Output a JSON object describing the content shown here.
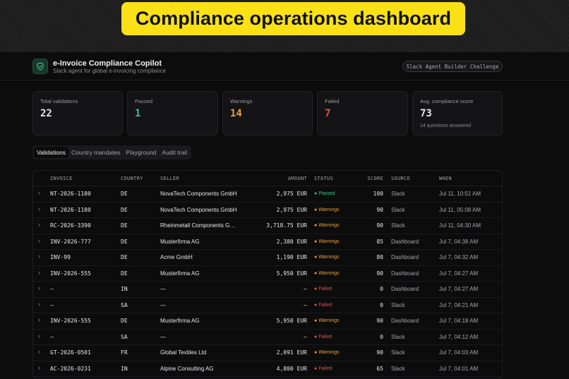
{
  "banner": {
    "title": "Compliance operations dashboard"
  },
  "header": {
    "app_title": "e-Invoice Compliance Copilot",
    "app_subtitle": "Slack agent for global e-invoicing compliance",
    "challenge_badge": "Slack Agent Builder Challenge",
    "logo_icon": "shield-check-icon"
  },
  "stats": [
    {
      "label": "Total validations",
      "value": "22",
      "color": "#e8e8ea"
    },
    {
      "label": "Passed",
      "value": "1",
      "color": "#3ec28a"
    },
    {
      "label": "Warnings",
      "value": "14",
      "color": "#e9a23b"
    },
    {
      "label": "Failed",
      "value": "7",
      "color": "#ef4b4b"
    },
    {
      "label": "Avg. compliance score",
      "value": "73",
      "color": "#e8e8ea",
      "note": "14 questions answered"
    }
  ],
  "tabs": [
    "Validations",
    "Country mandates",
    "Playground",
    "Audit trail"
  ],
  "table": {
    "columns": [
      "INVOICE",
      "COUNTRY",
      "SELLER",
      "AMOUNT",
      "STATUS",
      "SCORE",
      "SOURCE",
      "WHEN"
    ],
    "status_colors": {
      "Passed": "#3ec28a",
      "Warnings": "#e9a23b",
      "Failed": "#ef4b4b"
    },
    "rows": [
      {
        "invoice": "NT-2026-1180",
        "country": "DE",
        "seller": "NovaTech Components GmbH",
        "amount": "2,975 EUR",
        "status": "Passed",
        "score": "100",
        "source": "Slack",
        "when": "Jul 11, 10:51 AM"
      },
      {
        "invoice": "NT-2026-1180",
        "country": "DE",
        "seller": "NovaTech Components GmbH",
        "amount": "2,975 EUR",
        "status": "Warnings",
        "score": "90",
        "source": "Slack",
        "when": "Jul 11, 05:08 AM"
      },
      {
        "invoice": "RC-2026-3390",
        "country": "DE",
        "seller": "Rheinmetall Components G…",
        "amount": "3,718.75 EUR",
        "status": "Warnings",
        "score": "90",
        "source": "Slack",
        "when": "Jul 11, 04:30 AM"
      },
      {
        "invoice": "INV-2026-777",
        "country": "DE",
        "seller": "Musterfirma AG",
        "amount": "2,380 EUR",
        "status": "Warnings",
        "score": "85",
        "source": "Dashboard",
        "when": "Jul 7, 04:38 AM"
      },
      {
        "invoice": "INV-99",
        "country": "DE",
        "seller": "Acme GmbH",
        "amount": "1,190 EUR",
        "status": "Warnings",
        "score": "80",
        "source": "Dashboard",
        "when": "Jul 7, 04:32 AM"
      },
      {
        "invoice": "INV-2026-555",
        "country": "DE",
        "seller": "Musterfirma AG",
        "amount": "5,950 EUR",
        "status": "Warnings",
        "score": "90",
        "source": "Dashboard",
        "when": "Jul 7, 04:27 AM"
      },
      {
        "invoice": "—",
        "country": "IN",
        "seller": "—",
        "amount": "—",
        "status": "Failed",
        "score": "0",
        "source": "Dashboard",
        "when": "Jul 7, 04:27 AM"
      },
      {
        "invoice": "—",
        "country": "SA",
        "seller": "—",
        "amount": "—",
        "status": "Failed",
        "score": "0",
        "source": "Slack",
        "when": "Jul 7, 04:21 AM"
      },
      {
        "invoice": "INV-2026-555",
        "country": "DE",
        "seller": "Musterfirma AG",
        "amount": "5,950 EUR",
        "status": "Warnings",
        "score": "90",
        "source": "Dashboard",
        "when": "Jul 7, 04:18 AM"
      },
      {
        "invoice": "—",
        "country": "SA",
        "seller": "—",
        "amount": "—",
        "status": "Failed",
        "score": "0",
        "source": "Slack",
        "when": "Jul 7, 04:12 AM"
      },
      {
        "invoice": "GT-2026-0501",
        "country": "FR",
        "seller": "Global Textiles Ltd",
        "amount": "2,091 EUR",
        "status": "Warnings",
        "score": "90",
        "source": "Slack",
        "when": "Jul 7, 04:03 AM"
      },
      {
        "invoice": "AC-2026-0231",
        "country": "IN",
        "seller": "Alpine Consulting AG",
        "amount": "4,800 EUR",
        "status": "Failed",
        "score": "65",
        "source": "Slack",
        "when": "Jul 7, 04:01 AM"
      }
    ]
  }
}
